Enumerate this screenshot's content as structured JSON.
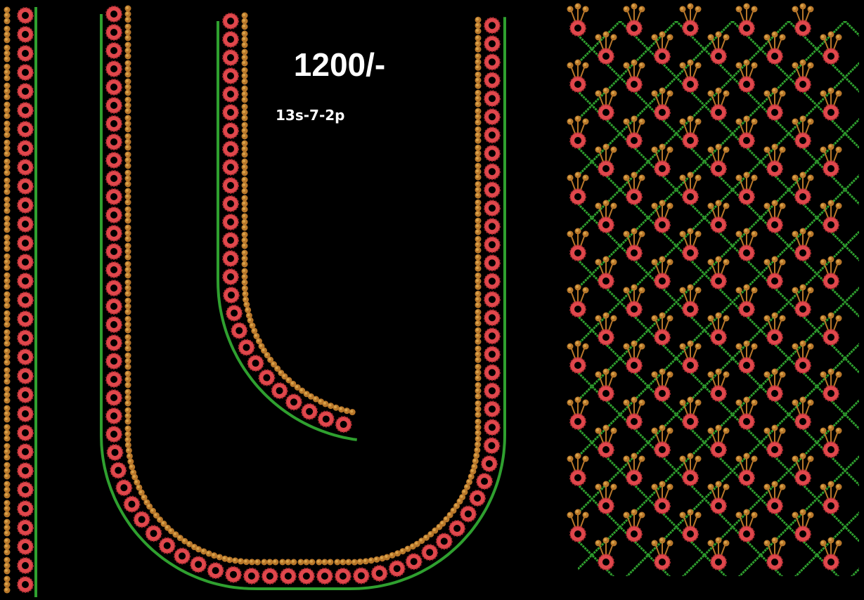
{
  "price": "1200/-",
  "design_code": "13s-7-2p",
  "colors": {
    "background": "#000000",
    "thread_red": "#e0474c",
    "thread_red_dark": "#a82a2f",
    "thread_gold": "#b8772a",
    "thread_gold_light": "#d9a24a",
    "thread_green": "#2fa02f",
    "thread_green_light": "#4cc84c"
  },
  "icons": {
    "motif": "bead-circle-icon",
    "fringe": "gold-dot-icon"
  }
}
